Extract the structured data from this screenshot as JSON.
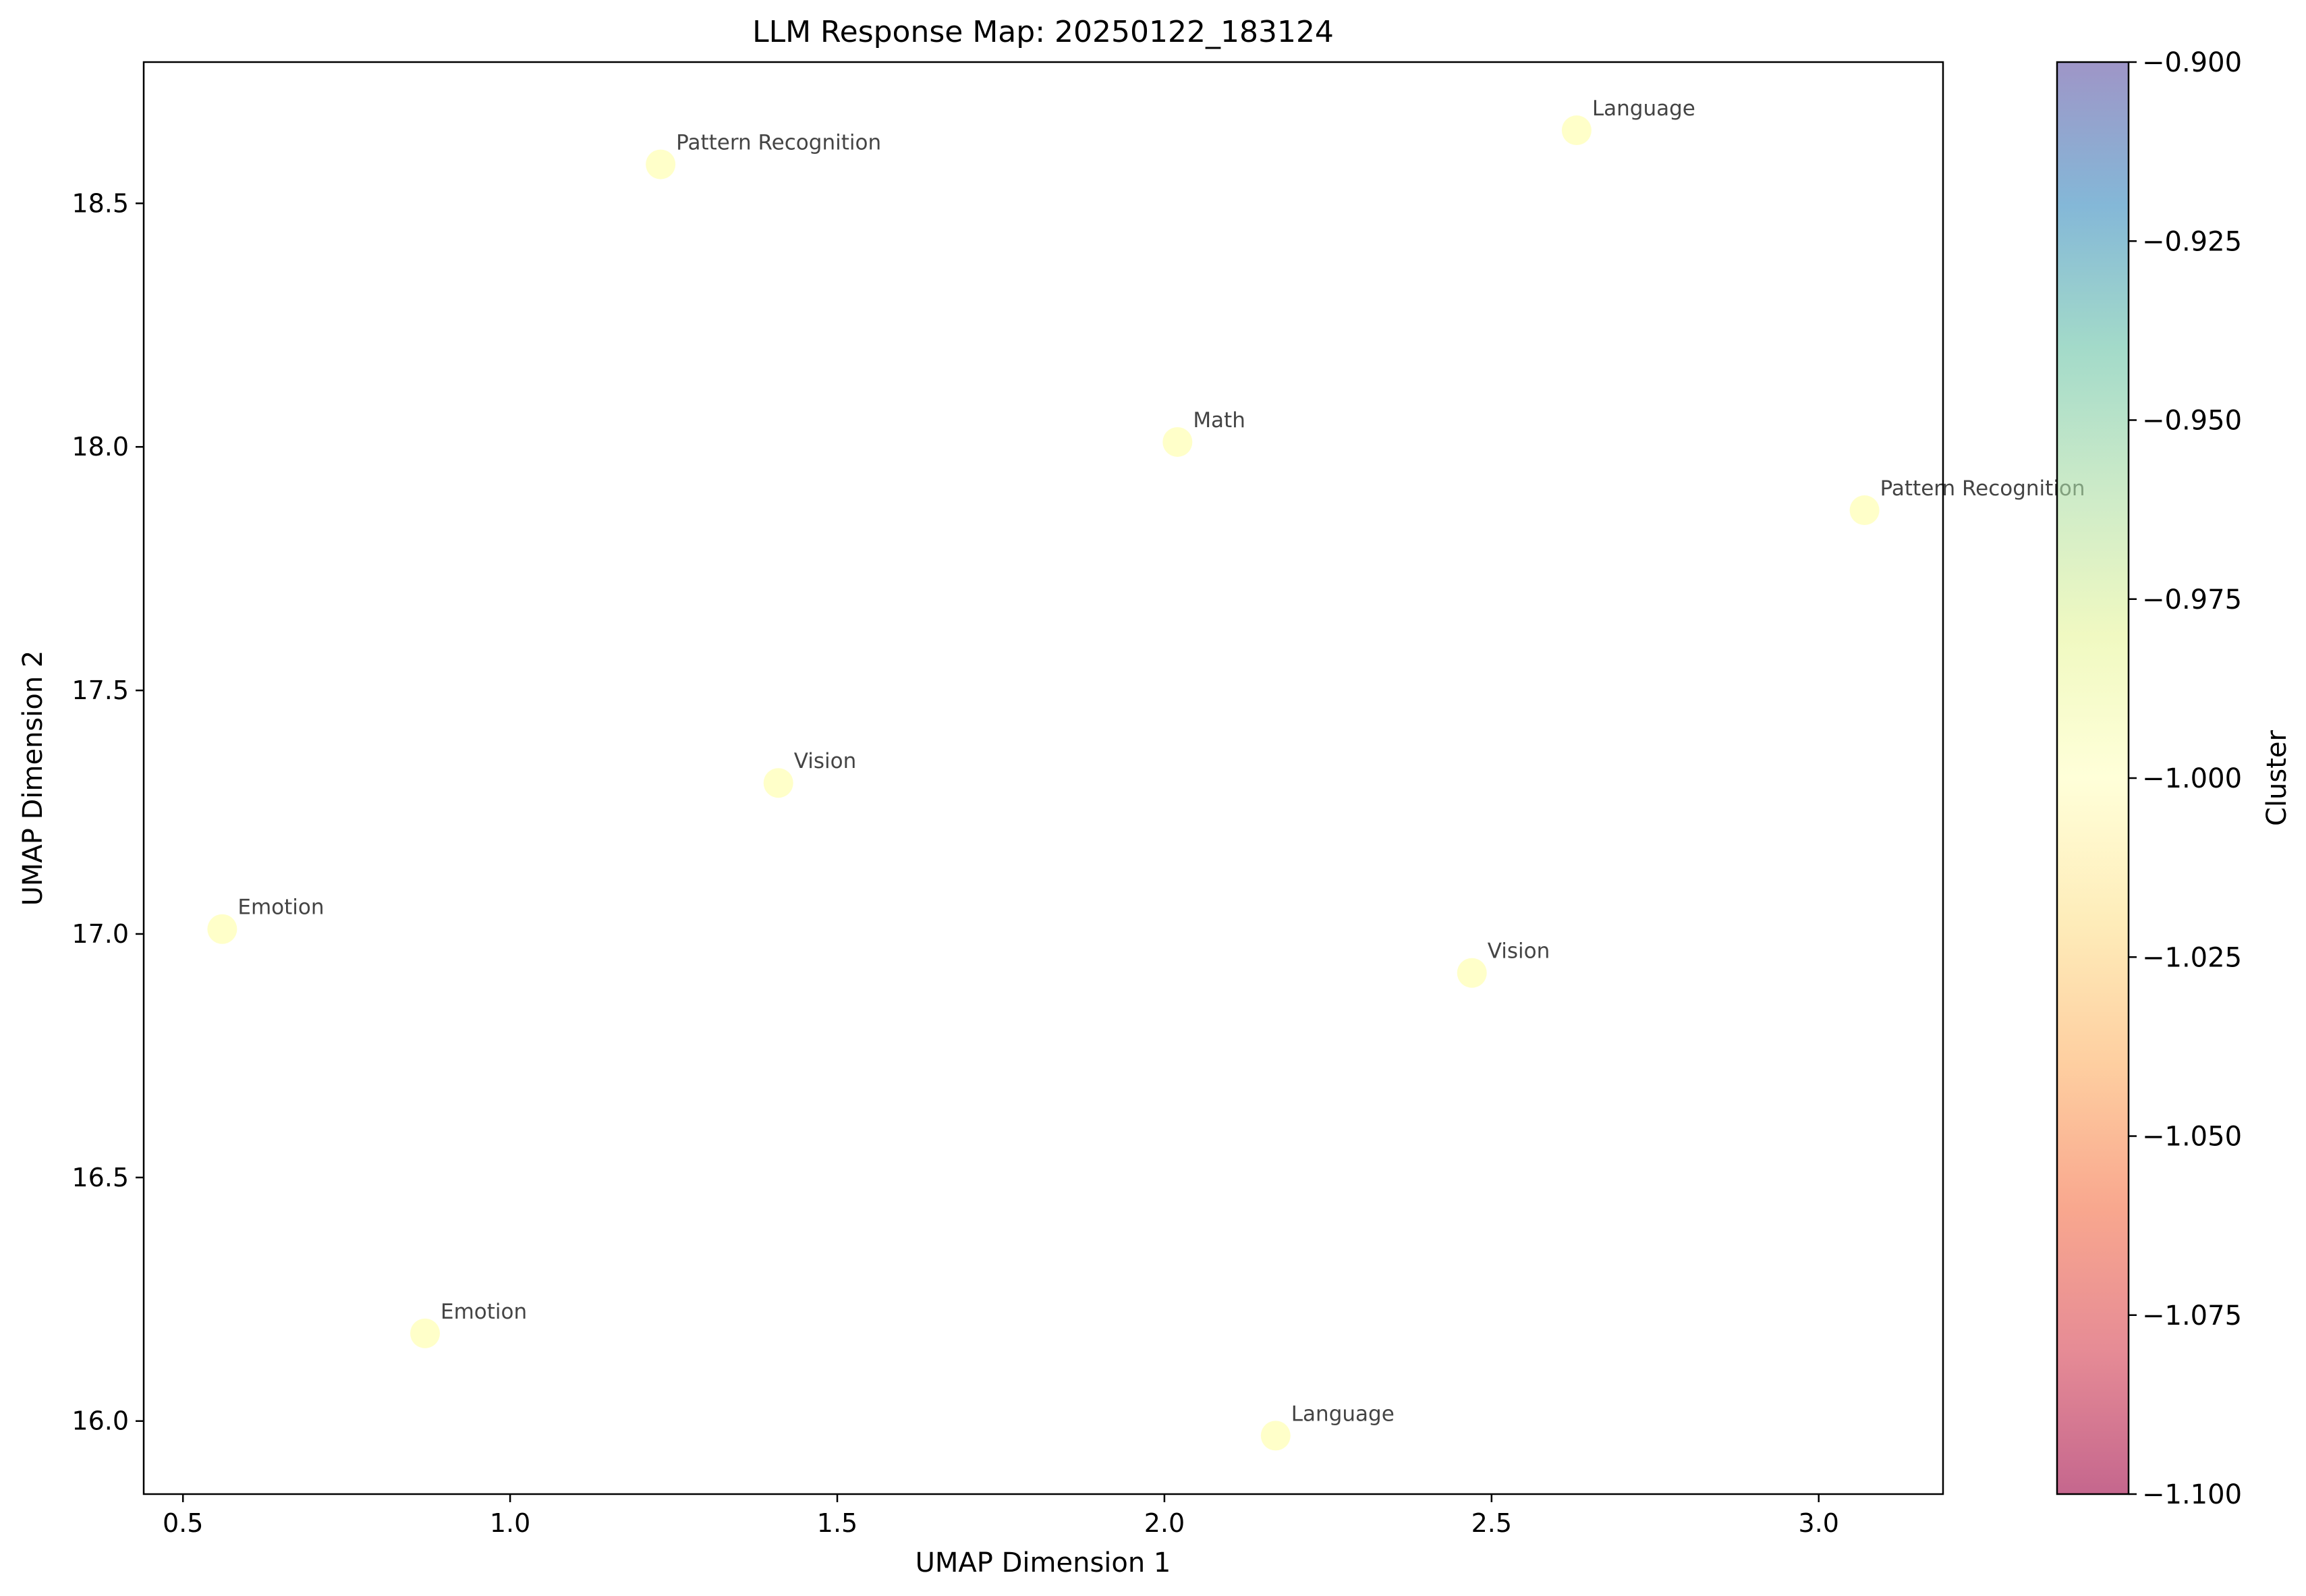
{
  "chart_data": {
    "type": "scatter",
    "title": "LLM Response Map: 20250122_183124",
    "xlabel": "UMAP Dimension 1",
    "ylabel": "UMAP Dimension 2",
    "xlim": [
      0.44,
      3.19
    ],
    "ylim": [
      15.85,
      18.79
    ],
    "xticks": [
      0.5,
      1.0,
      1.5,
      2.0,
      2.5,
      3.0
    ],
    "xtick_labels": [
      "0.5",
      "1.0",
      "1.5",
      "2.0",
      "2.5",
      "3.0"
    ],
    "yticks": [
      16.0,
      16.5,
      17.0,
      17.5,
      18.0,
      18.5
    ],
    "ytick_labels": [
      "16.0",
      "16.5",
      "17.0",
      "17.5",
      "18.0",
      "18.5"
    ],
    "grid": false,
    "point_color": "#ffffbf",
    "points": [
      {
        "x": 1.23,
        "y": 18.58,
        "label": "Pattern Recognition",
        "cluster": -1
      },
      {
        "x": 2.63,
        "y": 18.65,
        "label": "Language",
        "cluster": -1
      },
      {
        "x": 2.02,
        "y": 18.01,
        "label": "Math",
        "cluster": -1
      },
      {
        "x": 3.07,
        "y": 17.87,
        "label": "Pattern Recognition",
        "cluster": -1
      },
      {
        "x": 1.41,
        "y": 17.31,
        "label": "Vision",
        "cluster": -1
      },
      {
        "x": 0.56,
        "y": 17.01,
        "label": "Emotion",
        "cluster": -1
      },
      {
        "x": 2.47,
        "y": 16.92,
        "label": "Vision",
        "cluster": -1
      },
      {
        "x": 0.87,
        "y": 16.18,
        "label": "Emotion",
        "cluster": -1
      },
      {
        "x": 2.17,
        "y": 15.97,
        "label": "Language",
        "cluster": -1
      }
    ],
    "colorbar": {
      "label": "Cluster",
      "range": [
        -1.1,
        -0.9
      ],
      "ticks": [
        -0.9,
        -0.925,
        -0.95,
        -0.975,
        -1.0,
        -1.025,
        -1.05,
        -1.075,
        -1.1
      ],
      "tick_labels": [
        "−0.900",
        "−0.925",
        "−0.950",
        "−0.975",
        "−1.000",
        "−1.025",
        "−1.050",
        "−1.075",
        "−1.100"
      ],
      "colormap": "Spectral",
      "alpha": 0.6,
      "colors": [
        "#9e0142",
        "#d53e4f",
        "#f46d43",
        "#fdae61",
        "#fee08b",
        "#ffffbf",
        "#e6f598",
        "#abdda4",
        "#66c2a5",
        "#3288bd",
        "#5e4fa2"
      ]
    }
  }
}
